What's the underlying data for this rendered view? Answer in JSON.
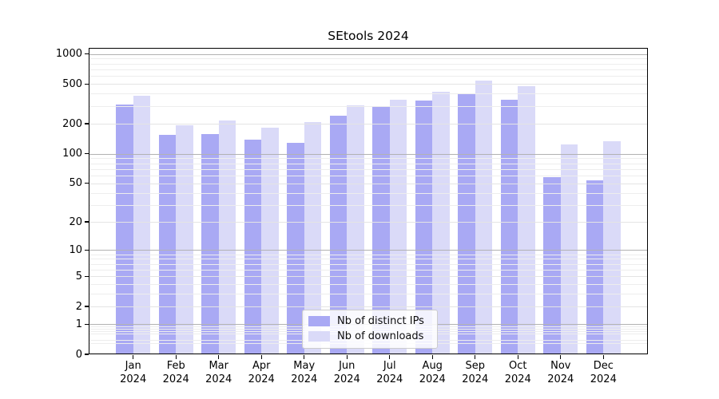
{
  "chart_data": {
    "type": "bar",
    "title": "SEtools 2024",
    "categories": [
      "Jan",
      "Feb",
      "Mar",
      "Apr",
      "May",
      "Jun",
      "Jul",
      "Aug",
      "Sep",
      "Oct",
      "Nov",
      "Dec"
    ],
    "x_tick_second_line": "2024",
    "series": [
      {
        "name": "Nb of distinct IPs",
        "color": "#a9a9f4",
        "values": [
          310,
          155,
          158,
          138,
          128,
          240,
          294,
          341,
          395,
          347,
          58,
          54
        ]
      },
      {
        "name": "Nb of downloads",
        "color": "#dadaf8",
        "values": [
          380,
          192,
          216,
          184,
          206,
          304,
          347,
          420,
          544,
          475,
          123,
          134
        ]
      }
    ],
    "yscale": "log1p",
    "y_ticks": [
      0,
      1,
      2,
      5,
      10,
      20,
      50,
      100,
      200,
      500,
      1000
    ],
    "ylim": [
      0,
      1150
    ],
    "xlabel": "",
    "ylabel": "",
    "grid": true,
    "legend_position": "lower center"
  }
}
